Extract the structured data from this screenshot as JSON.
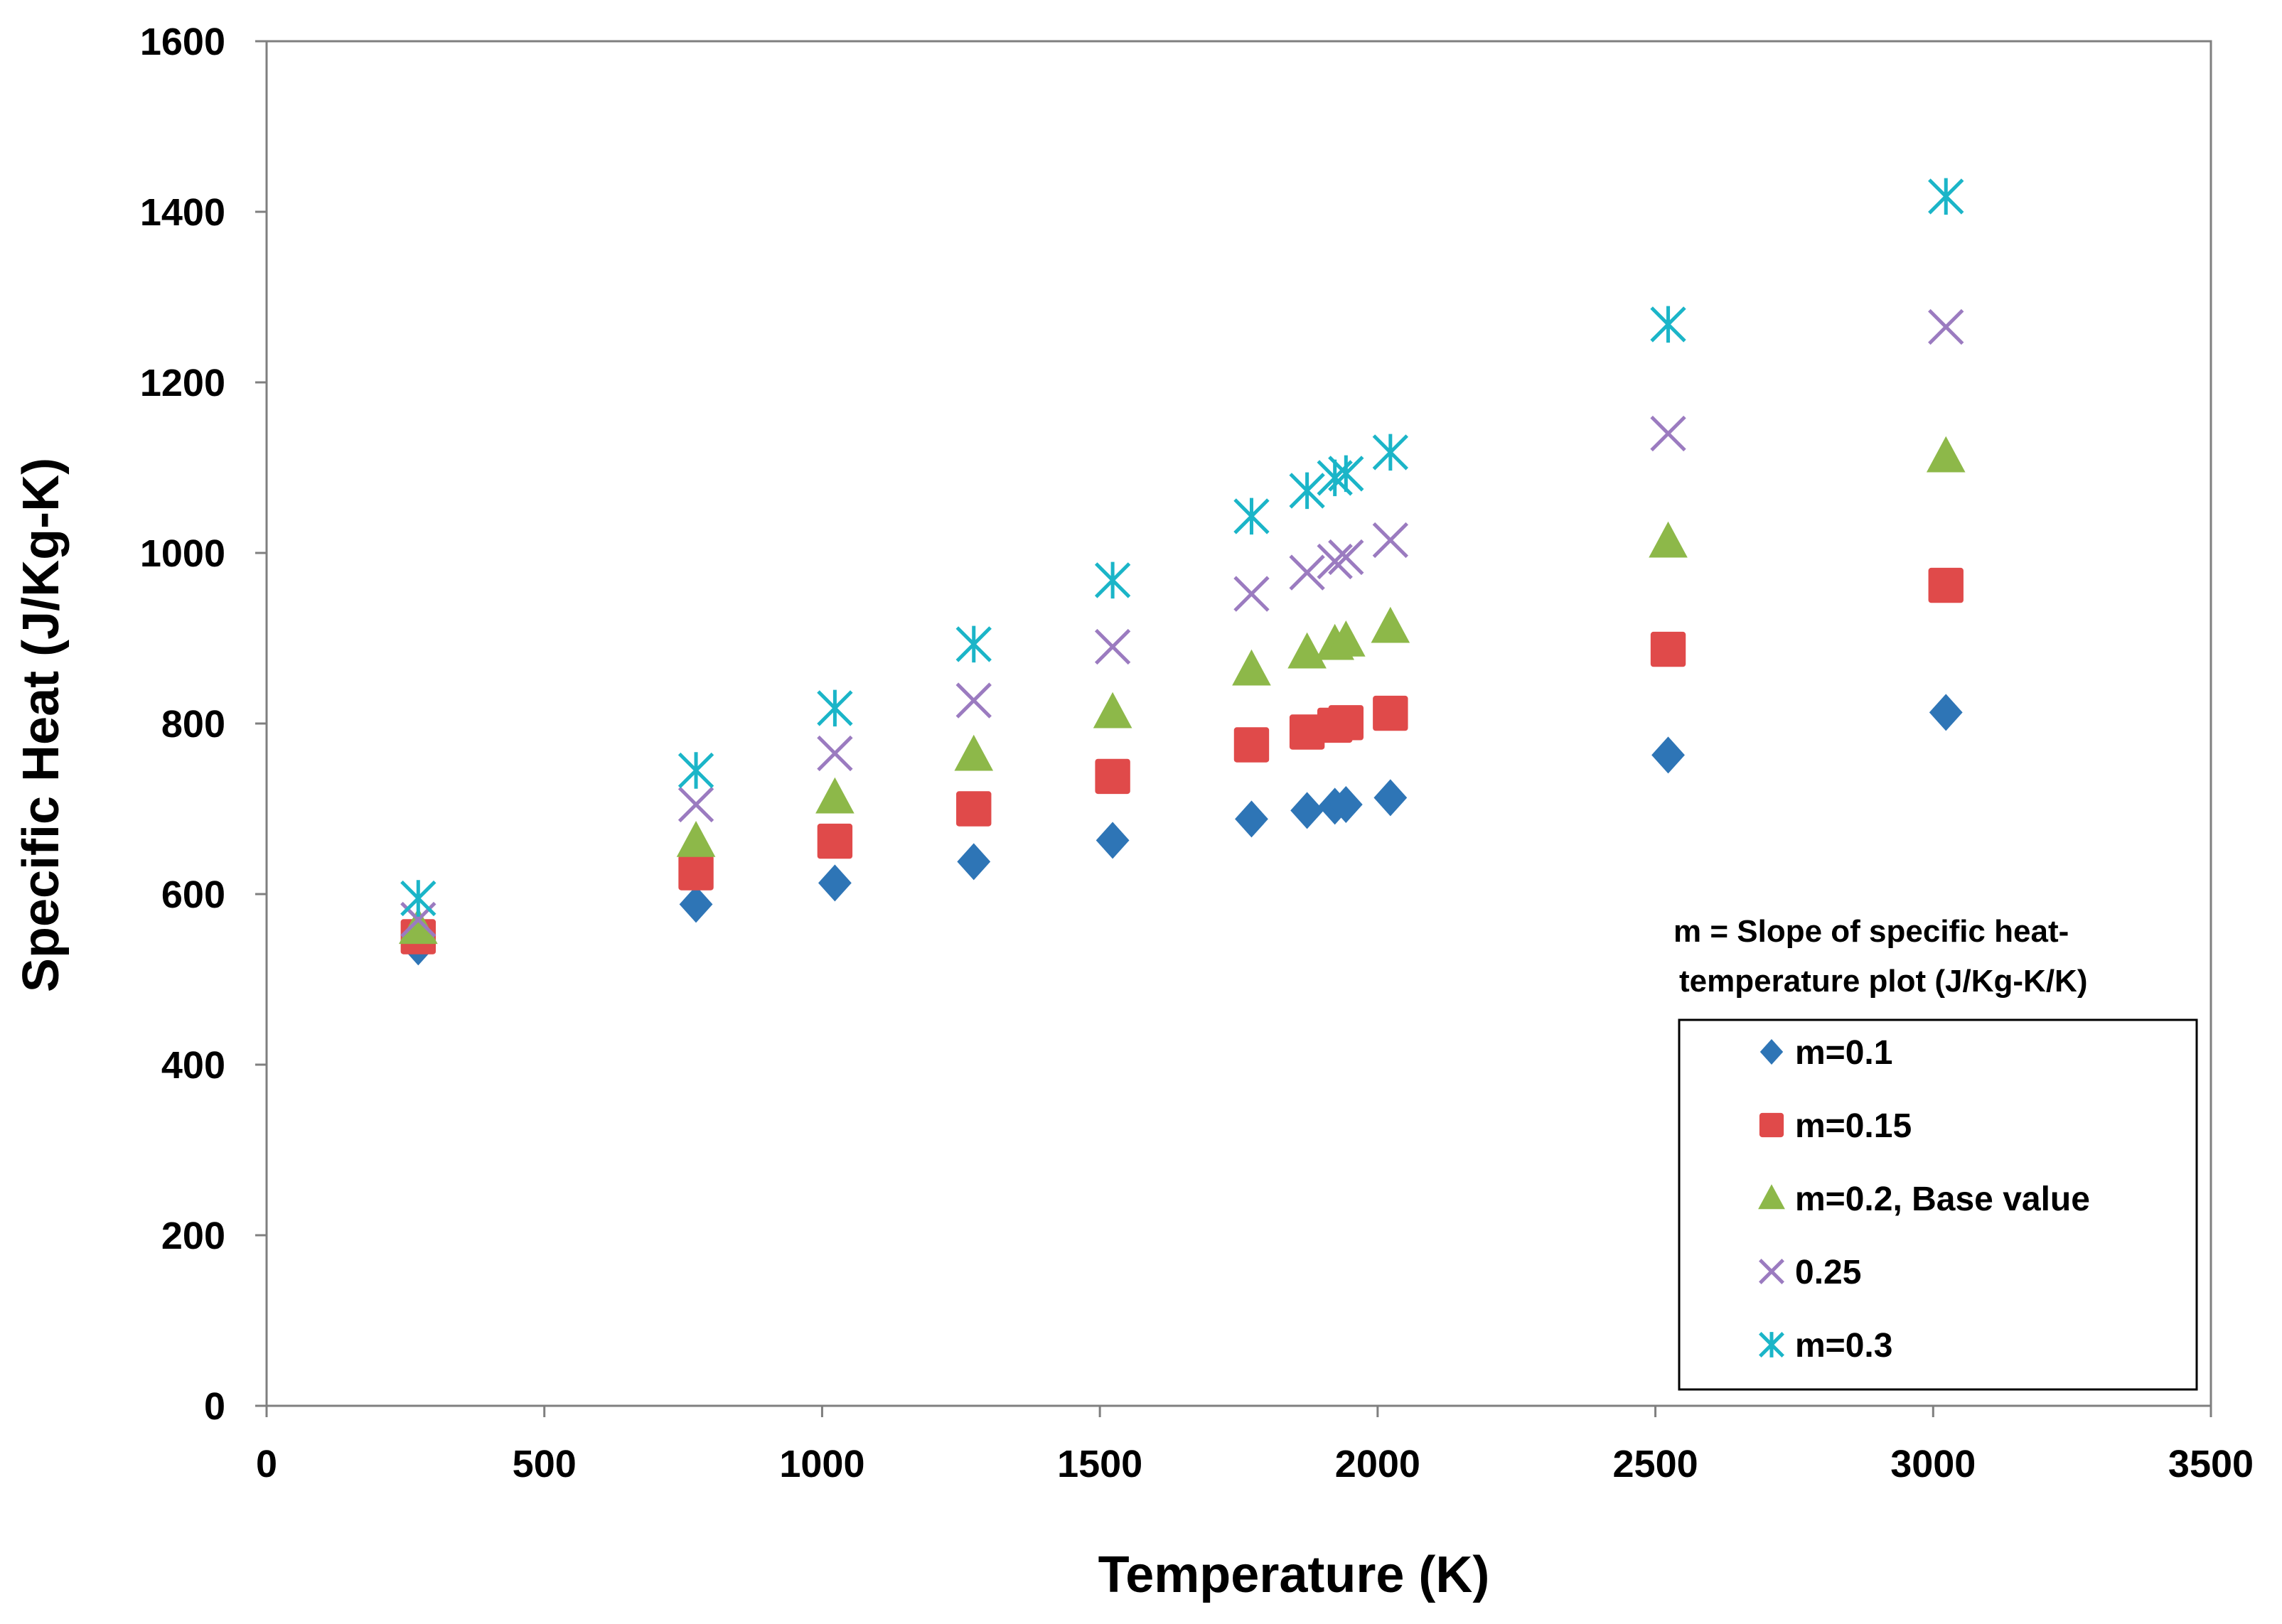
{
  "chart_data": {
    "type": "scatter",
    "title": "",
    "xlabel": "Temperature (K)",
    "ylabel": "Specific Heat (J/Kg-K)",
    "xlim": [
      0,
      3500
    ],
    "ylim": [
      0,
      1600
    ],
    "xticks": [
      0,
      500,
      1000,
      1500,
      2000,
      2500,
      3000,
      3500
    ],
    "yticks": [
      0,
      200,
      400,
      600,
      800,
      1000,
      1200,
      1400,
      1600
    ],
    "grid": false,
    "legend_position": "bottom-right",
    "legend_title_lines": [
      "m = Slope of specific heat-",
      "temperature plot (J/Kg-K/K)"
    ],
    "x": [
      273,
      773,
      1023,
      1273,
      1523,
      1773,
      1873,
      1923,
      1943,
      2023,
      2523,
      3023
    ],
    "series": [
      {
        "name": "m=0.1",
        "marker": "diamond",
        "color": "#2E75B6",
        "values": [
          538,
          588,
          613,
          638,
          663,
          688,
          698,
          703,
          705,
          713,
          763,
          813
        ]
      },
      {
        "name": "m=0.15",
        "marker": "square",
        "color": "#E04A4A",
        "values": [
          550,
          625,
          662,
          700,
          738,
          775,
          790,
          798,
          801,
          812,
          887,
          962
        ]
      },
      {
        "name": "m=0.2, Base value",
        "marker": "triangle",
        "color": "#8DB849",
        "values": [
          560,
          662,
          713,
          763,
          813,
          863,
          883,
          893,
          897,
          913,
          1013,
          1113
        ]
      },
      {
        "name": "0.25",
        "marker": "x",
        "color": "#9B7BC0",
        "values": [
          570,
          705,
          765,
          827,
          890,
          952,
          977,
          990,
          995,
          1015,
          1140,
          1265
        ]
      },
      {
        "name": "m=0.3",
        "marker": "asterisk",
        "color": "#1BB5C8",
        "values": [
          595,
          745,
          818,
          893,
          968,
          1043,
          1073,
          1088,
          1093,
          1118,
          1268,
          1418
        ]
      }
    ]
  }
}
